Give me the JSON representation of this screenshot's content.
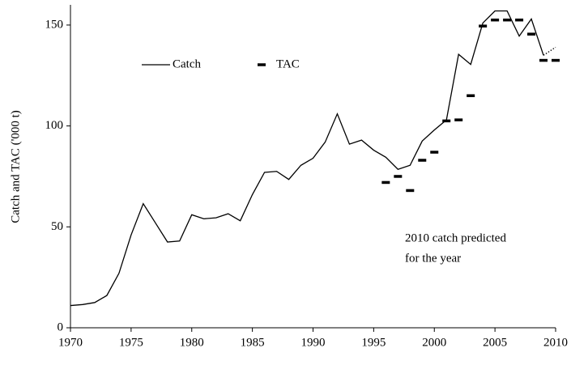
{
  "chart_data": {
    "type": "line",
    "y_label": "Catch and TAC ('000 t)",
    "xlim": [
      1970,
      2010
    ],
    "xticks": [
      1970,
      1975,
      1980,
      1985,
      1990,
      1995,
      2000,
      2005,
      2010
    ],
    "ylim": [
      0,
      160
    ],
    "yticks": [
      0,
      50,
      100,
      150
    ],
    "legend": "upper left",
    "annotation": [
      "2010 catch predicted",
      "for the year"
    ],
    "series": [
      {
        "name": "Catch",
        "style": "line",
        "color": "#000000",
        "dotted_from": 2009,
        "x": [
          1970,
          1971,
          1972,
          1973,
          1974,
          1975,
          1976,
          1977,
          1978,
          1979,
          1980,
          1981,
          1982,
          1983,
          1984,
          1985,
          1986,
          1987,
          1988,
          1989,
          1990,
          1991,
          1992,
          1993,
          1994,
          1995,
          1996,
          1997,
          1998,
          1999,
          2000,
          2001,
          2002,
          2003,
          2004,
          2005,
          2006,
          2007,
          2008,
          2009,
          2010
        ],
        "values": [
          11,
          11.5,
          12.5,
          16,
          27,
          46,
          61.5,
          52,
          42.5,
          43,
          56,
          54,
          54.5,
          56.5,
          53,
          66,
          77,
          77.5,
          73.5,
          80.5,
          84,
          92,
          106,
          91,
          93,
          88,
          84.5,
          78.5,
          80.5,
          92.5,
          98,
          103,
          135.5,
          130.5,
          151,
          157,
          157,
          144.5,
          153,
          135,
          139
        ]
      },
      {
        "name": "TAC",
        "style": "dash",
        "color": "#000000",
        "x": [
          1996,
          1997,
          1998,
          1999,
          2000,
          2001,
          2002,
          2003,
          2004,
          2005,
          2006,
          2007,
          2008,
          2009,
          2010
        ],
        "values": [
          72,
          75,
          68,
          83,
          87,
          102.5,
          103,
          115,
          149.5,
          152.5,
          152.5,
          152.5,
          145.5,
          132.5,
          132.5
        ]
      }
    ]
  }
}
